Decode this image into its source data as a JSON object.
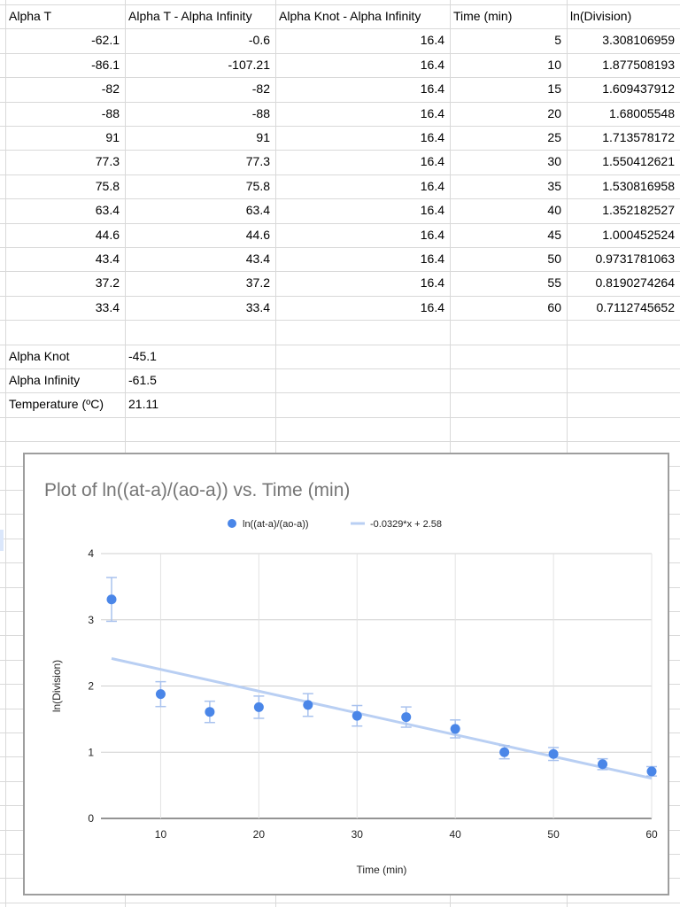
{
  "table": {
    "headers": [
      "Alpha T",
      "Alpha T - Alpha Infinity",
      "Alpha Knot - Alpha Infinity",
      "Time (min)",
      "ln(Division)"
    ],
    "rows": [
      [
        "-62.1",
        "-0.6",
        "16.4",
        "5",
        "3.308106959"
      ],
      [
        "-86.1",
        "-107.21",
        "16.4",
        "10",
        "1.877508193"
      ],
      [
        "-82",
        "-82",
        "16.4",
        "15",
        "1.609437912"
      ],
      [
        "-88",
        "-88",
        "16.4",
        "20",
        "1.68005548"
      ],
      [
        "91",
        "91",
        "16.4",
        "25",
        "1.713578172"
      ],
      [
        "77.3",
        "77.3",
        "16.4",
        "30",
        "1.550412621"
      ],
      [
        "75.8",
        "75.8",
        "16.4",
        "35",
        "1.530816958"
      ],
      [
        "63.4",
        "63.4",
        "16.4",
        "40",
        "1.352182527"
      ],
      [
        "44.6",
        "44.6",
        "16.4",
        "45",
        "1.000452524"
      ],
      [
        "43.4",
        "43.4",
        "16.4",
        "50",
        "0.9731781063"
      ],
      [
        "37.2",
        "37.2",
        "16.4",
        "55",
        "0.8190274264"
      ],
      [
        "33.4",
        "33.4",
        "16.4",
        "60",
        "0.7112745652"
      ]
    ]
  },
  "params": [
    {
      "label": "Alpha Knot",
      "value": "-45.1"
    },
    {
      "label": "Alpha Infinity",
      "value": "-61.5"
    },
    {
      "label": "Temperature (ºC)",
      "value": "21.11"
    }
  ],
  "chart_data": {
    "type": "scatter",
    "title": "Plot of ln((at-a)/(ao-a)) vs. Time (min)",
    "xlabel": "Time (min)",
    "ylabel": "ln(Division)",
    "xlim": [
      5,
      60
    ],
    "ylim": [
      0,
      4
    ],
    "x_ticks": [
      10,
      20,
      30,
      40,
      50,
      60
    ],
    "y_ticks": [
      0,
      1,
      2,
      3,
      4
    ],
    "grid": true,
    "legend_position": "top",
    "series": [
      {
        "name": "ln((at-a)/(ao-a))",
        "color": "#4a86e8",
        "x": [
          5,
          10,
          15,
          20,
          25,
          30,
          35,
          40,
          45,
          50,
          55,
          60
        ],
        "y": [
          3.308106959,
          1.877508193,
          1.609437912,
          1.68005548,
          1.713578172,
          1.550412621,
          1.530816958,
          1.352182527,
          1.000452524,
          0.9731781063,
          0.8190274264,
          0.7112745652
        ],
        "error_bar_fraction": 0.1
      }
    ],
    "trendline": {
      "label": "-0.0329*x + 2.58",
      "slope": -0.0329,
      "intercept": 2.58,
      "color": "#b9cff3"
    }
  }
}
